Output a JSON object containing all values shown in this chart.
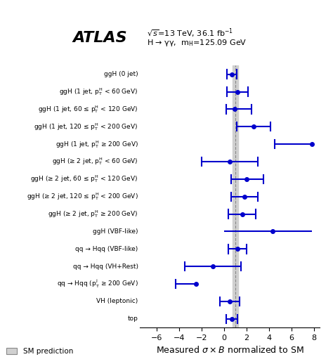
{
  "categories": [
    "ggH (0 jet)",
    "ggH (1 jet, p$_\\mathrm{T}^\\mathrm{H}$ < 60 GeV)",
    "ggH (1 jet, 60 ≤ p$_\\mathrm{T}^\\mathrm{H}$ < 120 GeV)",
    "ggH (1 jet, 120 ≤ p$_\\mathrm{T}^\\mathrm{H}$ < 200 GeV)",
    "ggH (1 jet, p$_\\mathrm{T}^\\mathrm{H}$ ≥ 200 GeV)",
    "ggH (≥ 2 jet, p$_\\mathrm{T}^\\mathrm{H}$ < 60 GeV)",
    "ggH (≥ 2 jet, 60 ≤ p$_\\mathrm{T}^\\mathrm{H}$ < 120 GeV)",
    "ggH (≥ 2 jet, 120 ≤ p$_\\mathrm{T}^\\mathrm{H}$ < 200 GeV)",
    "ggH (≥ 2 jet, p$_\\mathrm{T}^\\mathrm{H}$ ≥ 200 GeV)",
    "ggH (VBF-like)",
    "qq → Hqq (VBF-like)",
    "qq → Hqq (VH+Rest)",
    "qq → Hqq (p$_\\mathrm{T}^\\mathrm{j}$ ≥ 200 GeV)",
    "VH (leptonic)",
    "top"
  ],
  "values": [
    0.7,
    1.2,
    0.95,
    2.6,
    7.8,
    0.5,
    2.0,
    1.8,
    1.6,
    4.3,
    1.2,
    -1.0,
    -2.5,
    0.5,
    0.7
  ],
  "err_lo": [
    0.45,
    0.95,
    0.75,
    1.5,
    3.3,
    2.5,
    1.35,
    1.2,
    1.2,
    4.3,
    0.8,
    2.5,
    1.8,
    0.9,
    0.5
  ],
  "err_hi": [
    0.45,
    0.95,
    1.5,
    1.5,
    0.2,
    2.5,
    1.5,
    1.2,
    1.2,
    3.5,
    0.8,
    2.5,
    0.0,
    0.9,
    0.5
  ],
  "has_right_cap": [
    true,
    true,
    true,
    true,
    false,
    true,
    true,
    true,
    true,
    false,
    true,
    true,
    false,
    true,
    true
  ],
  "has_left_cap": [
    true,
    true,
    true,
    true,
    true,
    true,
    true,
    true,
    true,
    false,
    true,
    true,
    true,
    true,
    true
  ],
  "point_color": "#0000cc",
  "dashed_line_x": 1.0,
  "sm_band_lo": 0.75,
  "sm_band_hi": 1.25,
  "xlim": [
    -7.5,
    8.5
  ],
  "xticks": [
    -6,
    -4,
    -2,
    0,
    2,
    4,
    6,
    8
  ],
  "xlabel": "Measured $\\sigma \\times B$ normalized to SM",
  "atlas_label": "ATLAS",
  "subtitle_line1": "$\\sqrt{s}$=13 TeV, 36.1 fb$^{-1}$",
  "subtitle_line2": "H → γγ,  m$_\\mathrm{H}$=125.09 GeV",
  "legend_label": "SM prediction",
  "sm_band_color": "#d0d0d0",
  "background_color": "#ffffff"
}
